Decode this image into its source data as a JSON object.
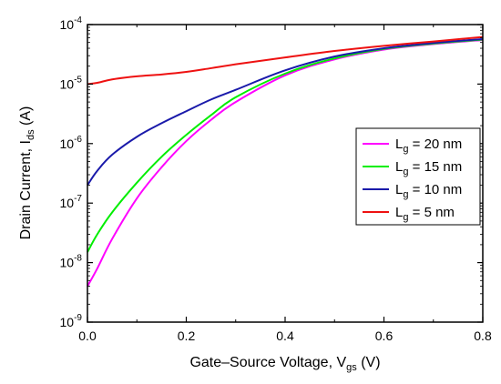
{
  "chart_data": {
    "type": "line",
    "xlabel": {
      "main": "Gate–Source Voltage, V",
      "sub": "gs",
      "unit": " (V)"
    },
    "ylabel": {
      "main": "Drain Current, I",
      "sub": "ds",
      "unit": " (A)"
    },
    "xlim": [
      0.0,
      0.8
    ],
    "ylim_log10": [
      -9,
      -4
    ],
    "y_scale": "log",
    "x_ticks": [
      0.0,
      0.2,
      0.4,
      0.6,
      0.8
    ],
    "x_tick_labels": [
      "0.0",
      "0.2",
      "0.4",
      "0.6",
      "0.8"
    ],
    "y_ticks_exp": [
      -9,
      -8,
      -7,
      -6,
      -5,
      -4
    ],
    "y_tick_labels": [
      {
        "base": "10",
        "exp": "-9"
      },
      {
        "base": "10",
        "exp": "-8"
      },
      {
        "base": "10",
        "exp": "-7"
      },
      {
        "base": "10",
        "exp": "-6"
      },
      {
        "base": "10",
        "exp": "-5"
      },
      {
        "base": "10",
        "exp": "-4"
      }
    ],
    "legend_position": "right",
    "grid": false,
    "series": [
      {
        "name": {
          "main": "L",
          "sub": "g",
          "rest": " = 20 nm"
        },
        "color": "#ff00ff",
        "x": [
          0.0,
          0.02,
          0.05,
          0.1,
          0.15,
          0.2,
          0.25,
          0.3,
          0.4,
          0.5,
          0.6,
          0.7,
          0.8
        ],
        "y": [
          4e-09,
          8e-09,
          2.5e-08,
          1.2e-07,
          4e-07,
          1.1e-06,
          2.5e-06,
          5e-06,
          1.4e-05,
          2.6e-05,
          3.8e-05,
          4.7e-05,
          5.5e-05
        ]
      },
      {
        "name": {
          "main": "L",
          "sub": "g",
          "rest": " = 15 nm"
        },
        "color": "#00ee00",
        "x": [
          0.0,
          0.02,
          0.05,
          0.1,
          0.15,
          0.2,
          0.25,
          0.3,
          0.4,
          0.5,
          0.6,
          0.7,
          0.8
        ],
        "y": [
          1.5e-08,
          3e-08,
          7e-08,
          2.2e-07,
          6e-07,
          1.4e-06,
          3e-06,
          6e-06,
          1.5e-05,
          2.7e-05,
          3.9e-05,
          4.8e-05,
          5.6e-05
        ]
      },
      {
        "name": {
          "main": "L",
          "sub": "g",
          "rest": " = 10 nm"
        },
        "color": "#1a1aaa",
        "x": [
          0.0,
          0.02,
          0.05,
          0.1,
          0.15,
          0.2,
          0.25,
          0.3,
          0.4,
          0.5,
          0.6,
          0.7,
          0.8
        ],
        "y": [
          2e-07,
          3.5e-07,
          6.5e-07,
          1.3e-06,
          2.2e-06,
          3.5e-06,
          5.5e-06,
          8e-06,
          1.7e-05,
          2.9e-05,
          4e-05,
          4.9e-05,
          5.7e-05
        ]
      },
      {
        "name": {
          "main": "L",
          "sub": "g",
          "rest": " = 5 nm"
        },
        "color": "#ee1111",
        "x": [
          0.0,
          0.02,
          0.05,
          0.1,
          0.15,
          0.2,
          0.25,
          0.3,
          0.4,
          0.5,
          0.6,
          0.7,
          0.8
        ],
        "y": [
          1e-05,
          1.05e-05,
          1.2e-05,
          1.35e-05,
          1.45e-05,
          1.6e-05,
          1.85e-05,
          2.15e-05,
          2.8e-05,
          3.6e-05,
          4.4e-05,
          5.2e-05,
          6.2e-05
        ]
      }
    ]
  }
}
